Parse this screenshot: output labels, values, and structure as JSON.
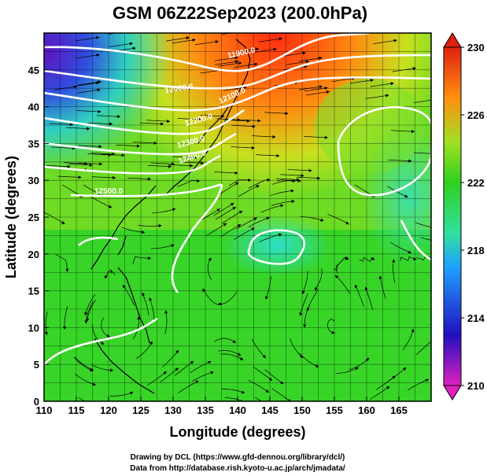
{
  "title": "GSM 06Z22Sep2023 (200.0hPa)",
  "xlabel": "Longitude (degrees)",
  "ylabel": "Latitude (degrees)",
  "credits": {
    "line1": "Drawing by DCL (https://www.gfd-dennou.org/library/dcl/)",
    "line2": "Data from http://database.rish.kyoto-u.ac.jp/arch/jmadata/"
  },
  "chart_data": {
    "type": "heatmap",
    "xlim": [
      110,
      170
    ],
    "ylim": [
      0,
      50
    ],
    "x_ticks": [
      110,
      115,
      120,
      125,
      130,
      135,
      140,
      145,
      150,
      155,
      160,
      165
    ],
    "y_ticks": [
      0,
      5,
      10,
      15,
      20,
      25,
      30,
      35,
      40,
      45
    ],
    "colorbar": {
      "min": 210,
      "max": 230,
      "ticks": [
        230,
        226,
        222,
        218,
        214,
        210
      ],
      "colors": [
        "#e020c0",
        "#2010c0",
        "#20a0ff",
        "#30e0a0",
        "#30d020",
        "#a0e020",
        "#ff9010",
        "#e02010"
      ]
    },
    "contours": [
      {
        "label": "11900.0"
      },
      {
        "label": "12000.0"
      },
      {
        "label": "12100.0"
      },
      {
        "label": "12200.0"
      },
      {
        "label": "12300.0"
      },
      {
        "label": "12400.0"
      },
      {
        "label": "12500.0"
      }
    ]
  }
}
